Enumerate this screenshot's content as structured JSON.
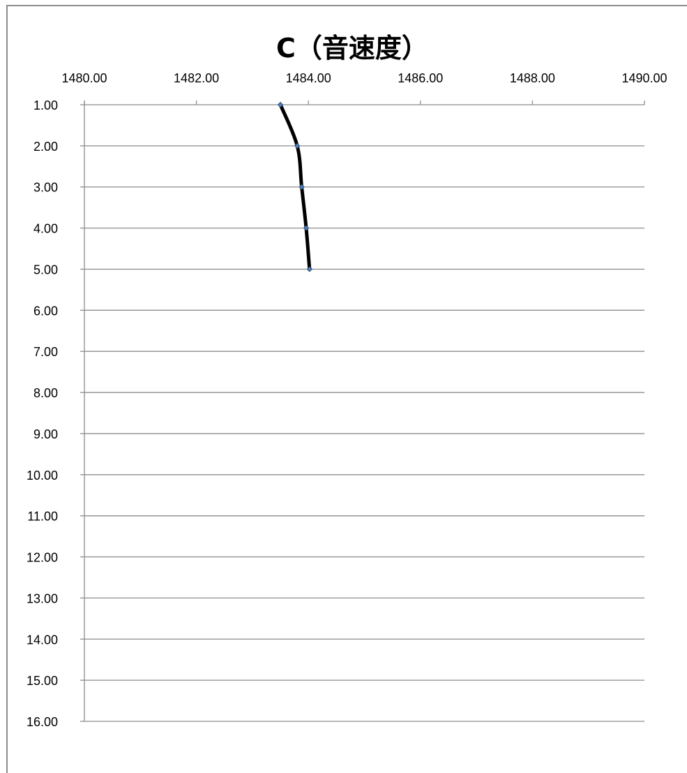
{
  "chart_data": {
    "type": "line",
    "title": "C（音速度）",
    "xlabel": "",
    "ylabel": "",
    "x_axis_position": "top",
    "y_axis_reversed": true,
    "xlim": [
      1480.0,
      1490.0
    ],
    "ylim": [
      1.0,
      16.0
    ],
    "x_ticks": [
      "1480.00",
      "1482.00",
      "1484.00",
      "1486.00",
      "1488.00",
      "1490.00"
    ],
    "y_ticks": [
      "1.00",
      "2.00",
      "3.00",
      "4.00",
      "5.00",
      "6.00",
      "7.00",
      "8.00",
      "9.00",
      "10.00",
      "11.00",
      "12.00",
      "13.00",
      "14.00",
      "15.00",
      "16.00"
    ],
    "grid": "horizontal",
    "series": [
      {
        "x": [
          1483.5,
          1483.8,
          1483.88,
          1483.96,
          1484.02
        ],
        "y": [
          1.0,
          2.0,
          3.0,
          4.0,
          5.0
        ],
        "line_color": "#000000",
        "marker_color": "#4f81bd",
        "marker": "diamond",
        "smooth": true
      }
    ],
    "colors": {
      "grid": "#8c8c8c",
      "axis": "#8c8c8c"
    }
  }
}
